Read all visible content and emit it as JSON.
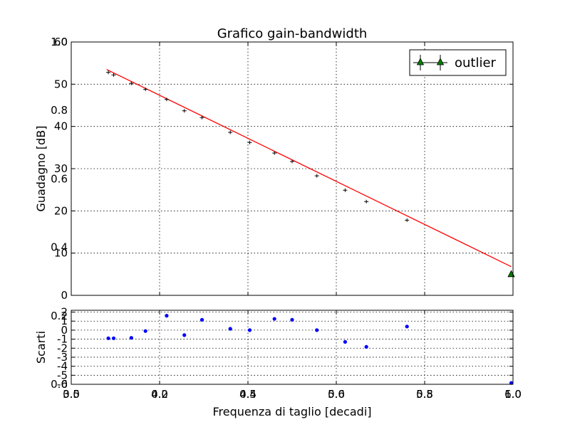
{
  "chart_data": {
    "type": "scatter",
    "title": "Grafico gain-bandwidth",
    "xlabel": "Frequenza di taglio [decadi]",
    "ylabel_top": "Guadagno [dB]",
    "ylabel_bottom": "Scarti",
    "legend": {
      "label": "outlier",
      "placement": "top-right"
    },
    "grid": true,
    "top_panel": {
      "xlim": [
        3.5,
        6.0
      ],
      "ylim": [
        0,
        60
      ],
      "x_ticks": [
        3.5,
        4.0,
        4.5,
        5.0,
        5.5,
        6.0
      ],
      "y_ticks": [
        0,
        10,
        20,
        30,
        40,
        50,
        60
      ],
      "fit_line": {
        "x": [
          3.7,
          5.99
        ],
        "y": [
          53.5,
          6.8
        ],
        "color": "#ff0000"
      },
      "series": [
        {
          "kind": "data",
          "color": "#000000",
          "x": [
            3.71,
            3.74,
            3.84,
            3.92,
            4.04,
            4.14,
            4.24,
            4.4,
            4.51,
            4.65,
            4.75,
            4.89,
            5.05,
            5.17,
            5.4
          ],
          "y": [
            52.8,
            52.2,
            50.2,
            48.8,
            46.4,
            43.7,
            42.1,
            38.6,
            36.2,
            33.7,
            31.7,
            28.3,
            24.9,
            22.2,
            17.8
          ]
        },
        {
          "kind": "outlier",
          "name": "outlier",
          "color": "#007f00",
          "x": [
            5.99
          ],
          "y": [
            5.0
          ]
        }
      ]
    },
    "bottom_panel": {
      "ylim": [
        -6,
        2.2
      ],
      "y_ticks": [
        -6,
        -5,
        -4,
        -3,
        -2,
        -1,
        0,
        1,
        2
      ],
      "series": [
        {
          "kind": "residuals",
          "color": "#0000ff",
          "x": [
            3.71,
            3.74,
            3.84,
            3.92,
            4.04,
            4.14,
            4.24,
            4.4,
            4.51,
            4.65,
            4.75,
            4.89,
            5.05,
            5.17,
            5.4,
            5.99
          ],
          "y": [
            -0.9,
            -0.9,
            -0.85,
            -0.1,
            1.6,
            -0.55,
            1.15,
            0.15,
            0.0,
            1.25,
            1.15,
            0.0,
            -1.3,
            -1.85,
            0.4,
            -5.85
          ]
        }
      ]
    },
    "overlay_axis": {
      "x_ticks": [
        "0.0",
        "0.2",
        "0.4",
        "0.6",
        "0.8",
        "1.0"
      ],
      "y_ticks": [
        "0.0",
        "0.2",
        "0.4",
        "0.6",
        "0.8",
        "1.0"
      ]
    }
  }
}
